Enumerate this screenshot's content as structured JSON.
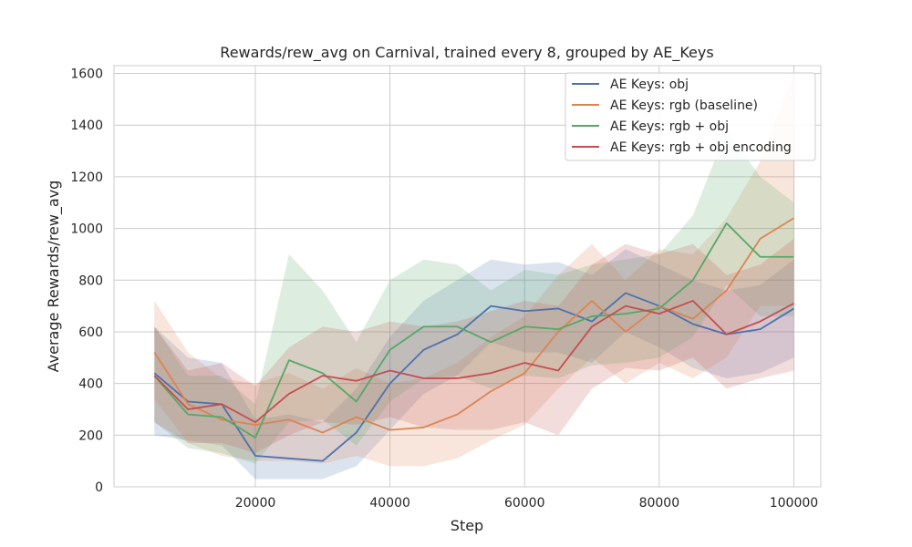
{
  "chart_data": {
    "type": "line",
    "title": "Rewards/rew_avg on Carnival, trained every 8, grouped by AE_Keys",
    "xlabel": "Step",
    "ylabel": "Average Rewards/rew_avg",
    "xlim": [
      -1000,
      104000
    ],
    "ylim": [
      0,
      1630
    ],
    "xticks": [
      20000,
      40000,
      60000,
      80000,
      100000
    ],
    "xtick_labels": [
      "20000",
      "40000",
      "60000",
      "80000",
      "100000"
    ],
    "yticks": [
      0,
      200,
      400,
      600,
      800,
      1000,
      1200,
      1400,
      1600
    ],
    "ytick_labels": [
      "0",
      "200",
      "400",
      "600",
      "800",
      "1000",
      "1200",
      "1400",
      "1600"
    ],
    "grid": true,
    "legend_position": "top-right",
    "x": [
      5000,
      10000,
      15000,
      20000,
      25000,
      30000,
      35000,
      40000,
      45000,
      50000,
      55000,
      60000,
      65000,
      70000,
      75000,
      80000,
      85000,
      90000,
      95000,
      100000
    ],
    "series": [
      {
        "name": "AE Keys: obj",
        "color": "#4c72b0",
        "values": [
          440,
          330,
          320,
          120,
          110,
          100,
          210,
          400,
          530,
          590,
          700,
          680,
          690,
          640,
          750,
          700,
          630,
          590,
          610,
          690
        ],
        "lower": [
          200,
          180,
          160,
          30,
          30,
          30,
          80,
          220,
          360,
          430,
          560,
          520,
          520,
          480,
          600,
          540,
          460,
          420,
          440,
          500
        ],
        "upper": [
          620,
          500,
          480,
          260,
          280,
          250,
          380,
          580,
          720,
          800,
          880,
          860,
          870,
          820,
          920,
          860,
          800,
          760,
          780,
          880
        ]
      },
      {
        "name": "AE Keys: rgb (baseline)",
        "color": "#dd8452",
        "values": [
          520,
          320,
          260,
          240,
          260,
          210,
          270,
          220,
          230,
          280,
          370,
          440,
          600,
          720,
          600,
          700,
          650,
          760,
          960,
          1040
        ],
        "lower": [
          340,
          170,
          120,
          100,
          100,
          90,
          120,
          80,
          80,
          110,
          180,
          240,
          380,
          500,
          400,
          480,
          420,
          500,
          700,
          700
        ],
        "upper": [
          720,
          520,
          420,
          400,
          440,
          380,
          460,
          400,
          420,
          480,
          580,
          660,
          820,
          940,
          800,
          920,
          900,
          1040,
          1260,
          1600
        ]
      },
      {
        "name": "AE Keys: rgb + obj",
        "color": "#55a868",
        "values": [
          430,
          280,
          270,
          190,
          490,
          440,
          330,
          530,
          620,
          620,
          560,
          620,
          610,
          660,
          670,
          690,
          800,
          1020,
          890,
          890
        ],
        "lower": [
          250,
          150,
          130,
          90,
          250,
          260,
          160,
          330,
          420,
          430,
          380,
          430,
          420,
          470,
          480,
          500,
          580,
          780,
          660,
          660
        ],
        "upper": [
          620,
          430,
          430,
          320,
          900,
          760,
          560,
          800,
          880,
          860,
          760,
          840,
          820,
          860,
          880,
          900,
          1050,
          1380,
          1200,
          1100
        ]
      },
      {
        "name": "AE Keys: rgb + obj encoding",
        "color": "#c44e52",
        "values": [
          430,
          300,
          320,
          250,
          360,
          430,
          410,
          450,
          420,
          420,
          440,
          480,
          450,
          620,
          700,
          670,
          720,
          590,
          640,
          710
        ],
        "lower": [
          250,
          170,
          170,
          130,
          200,
          250,
          240,
          270,
          230,
          220,
          220,
          250,
          200,
          380,
          460,
          450,
          500,
          380,
          420,
          450
        ],
        "upper": [
          620,
          450,
          480,
          390,
          540,
          620,
          600,
          640,
          620,
          640,
          680,
          720,
          700,
          860,
          940,
          900,
          940,
          820,
          860,
          960
        ]
      }
    ]
  }
}
